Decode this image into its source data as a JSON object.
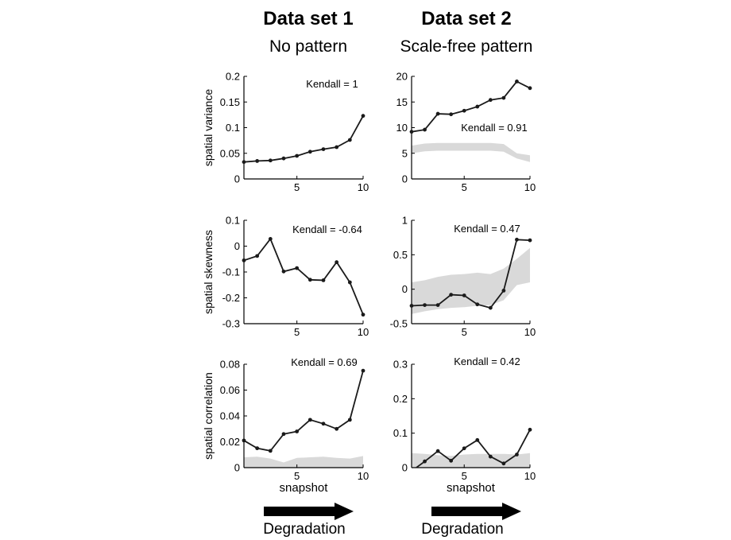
{
  "columns": [
    {
      "title": "Data set 1",
      "subtitle": "No pattern",
      "arrow_label": "Degradation",
      "xlabel": "snapshot"
    },
    {
      "title": "Data set 2",
      "subtitle": "Scale-free pattern",
      "arrow_label": "Degradation",
      "xlabel": "snapshot"
    }
  ],
  "chart_data": [
    {
      "type": "line",
      "column": 1,
      "row": 1,
      "ylabel": "spatial variance",
      "annotation": "Kendall = 1",
      "xlim": [
        1,
        10
      ],
      "xticks": [
        5,
        10
      ],
      "ylim": [
        0,
        0.2
      ],
      "yticks": [
        0,
        0.05,
        0.1,
        0.15,
        0.2
      ],
      "yticklabels": [
        "0",
        "0.05",
        "0.1",
        "0.15",
        "0.2"
      ],
      "x": [
        1,
        2,
        3,
        4,
        5,
        6,
        7,
        8,
        9,
        10
      ],
      "values": [
        0.033,
        0.035,
        0.036,
        0.04,
        0.045,
        0.053,
        0.058,
        0.062,
        0.076,
        0.123
      ],
      "band": null
    },
    {
      "type": "line",
      "column": 2,
      "row": 1,
      "ylabel": "",
      "annotation": "Kendall = 0.91",
      "xlim": [
        1,
        10
      ],
      "xticks": [
        5,
        10
      ],
      "ylim": [
        0,
        20
      ],
      "yticks": [
        0,
        5,
        10,
        15,
        20
      ],
      "yticklabels": [
        "0",
        "5",
        "10",
        "15",
        "20"
      ],
      "x": [
        1,
        2,
        3,
        4,
        5,
        6,
        7,
        8,
        9,
        10
      ],
      "values": [
        9.2,
        9.6,
        12.7,
        12.6,
        13.3,
        14.1,
        15.4,
        15.8,
        19.0,
        17.7
      ],
      "band": {
        "lower": [
          5.0,
          5.4,
          5.5,
          5.5,
          5.5,
          5.5,
          5.5,
          5.3,
          4.0,
          3.3
        ],
        "upper": [
          6.5,
          6.9,
          7.0,
          7.0,
          7.0,
          7.0,
          7.0,
          6.8,
          5.0,
          4.6
        ]
      }
    },
    {
      "type": "line",
      "column": 1,
      "row": 2,
      "ylabel": "spatial skewness",
      "annotation": "Kendall = -0.64",
      "xlim": [
        1,
        10
      ],
      "xticks": [
        5,
        10
      ],
      "ylim": [
        -0.3,
        0.1
      ],
      "yticks": [
        -0.3,
        -0.2,
        -0.1,
        0,
        0.1
      ],
      "yticklabels": [
        "-0.3",
        "-0.2",
        "-0.1",
        "0",
        "0.1"
      ],
      "x": [
        1,
        2,
        3,
        4,
        5,
        6,
        7,
        8,
        9,
        10
      ],
      "values": [
        -0.055,
        -0.038,
        0.028,
        -0.098,
        -0.085,
        -0.13,
        -0.132,
        -0.062,
        -0.14,
        -0.265
      ],
      "band": null
    },
    {
      "type": "line",
      "column": 2,
      "row": 2,
      "ylabel": "",
      "annotation": "Kendall = 0.47",
      "xlim": [
        1,
        10
      ],
      "xticks": [
        5,
        10
      ],
      "ylim": [
        -0.5,
        1
      ],
      "yticks": [
        -0.5,
        0,
        0.5,
        1
      ],
      "yticklabels": [
        "-0.5",
        "0",
        "0.5",
        "1"
      ],
      "x": [
        1,
        2,
        3,
        4,
        5,
        6,
        7,
        8,
        9,
        10
      ],
      "values": [
        -0.24,
        -0.23,
        -0.23,
        -0.08,
        -0.09,
        -0.22,
        -0.27,
        -0.02,
        0.72,
        0.71
      ],
      "band": {
        "lower": [
          -0.36,
          -0.32,
          -0.29,
          -0.27,
          -0.26,
          -0.24,
          -0.23,
          -0.16,
          0.06,
          0.1
        ],
        "upper": [
          0.1,
          0.13,
          0.18,
          0.21,
          0.22,
          0.24,
          0.22,
          0.3,
          0.44,
          0.6
        ]
      }
    },
    {
      "type": "line",
      "column": 1,
      "row": 3,
      "ylabel": "spatial correlation",
      "annotation": "Kendall = 0.69",
      "xlabel": "snapshot",
      "xlim": [
        1,
        10
      ],
      "xticks": [
        5,
        10
      ],
      "ylim": [
        0,
        0.08
      ],
      "yticks": [
        0,
        0.02,
        0.04,
        0.06,
        0.08
      ],
      "yticklabels": [
        "0",
        "0.02",
        "0.04",
        "0.06",
        "0.08"
      ],
      "x": [
        1,
        2,
        3,
        4,
        5,
        6,
        7,
        8,
        9,
        10
      ],
      "values": [
        0.021,
        0.015,
        0.013,
        0.026,
        0.028,
        0.037,
        0.034,
        0.03,
        0.037,
        0.075
      ],
      "band": {
        "lower": [
          0,
          0,
          0,
          0,
          0,
          0,
          0,
          0,
          0,
          0
        ],
        "upper": [
          0.008,
          0.0085,
          0.007,
          0.004,
          0.0075,
          0.008,
          0.0085,
          0.0075,
          0.007,
          0.009
        ]
      }
    },
    {
      "type": "line",
      "column": 2,
      "row": 3,
      "ylabel": "",
      "annotation": "Kendall = 0.42",
      "xlabel": "snapshot",
      "xlim": [
        1,
        10
      ],
      "xticks": [
        5,
        10
      ],
      "ylim": [
        0,
        0.3
      ],
      "yticks": [
        0,
        0.1,
        0.2,
        0.3
      ],
      "yticklabels": [
        "0",
        "0.1",
        "0.2",
        "0.3"
      ],
      "x": [
        1,
        2,
        3,
        4,
        5,
        6,
        7,
        8,
        9,
        10
      ],
      "values": [
        -0.01,
        0.018,
        0.048,
        0.02,
        0.056,
        0.08,
        0.032,
        0.012,
        0.038,
        0.11
      ],
      "band": {
        "lower": [
          0,
          0,
          0,
          0,
          0,
          0,
          0,
          0,
          0,
          0
        ],
        "upper": [
          0.042,
          0.04,
          0.036,
          0.034,
          0.038,
          0.04,
          0.04,
          0.04,
          0.038,
          0.042
        ]
      }
    }
  ],
  "colors": {
    "line": "#1a1a1a",
    "band": "#d9d9d9",
    "axis": "#000000"
  }
}
